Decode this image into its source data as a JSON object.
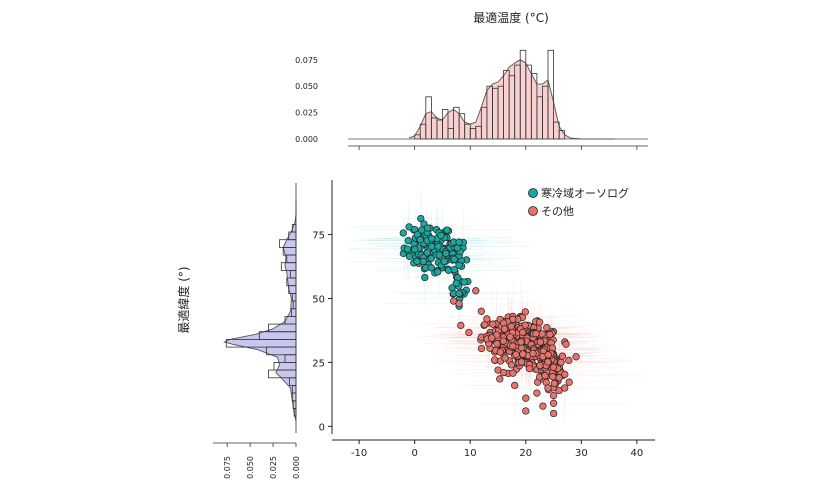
{
  "chart_data": [
    {
      "type": "histogram",
      "panel": "top-marginal",
      "title": "最適温度 (°C)",
      "yticks": [
        "0.000",
        "0.025",
        "0.050",
        "0.075"
      ],
      "bins": [
        {
          "x0": 0,
          "x1": 1,
          "y": 0.004
        },
        {
          "x0": 1,
          "x1": 2,
          "y": 0.014
        },
        {
          "x0": 2,
          "x1": 3,
          "y": 0.04
        },
        {
          "x0": 3,
          "x1": 4,
          "y": 0.02
        },
        {
          "x0": 4,
          "x1": 5,
          "y": 0.018
        },
        {
          "x0": 5,
          "x1": 6,
          "y": 0.028
        },
        {
          "x0": 6,
          "x1": 7,
          "y": 0.01
        },
        {
          "x0": 7,
          "x1": 8,
          "y": 0.03
        },
        {
          "x0": 8,
          "x1": 9,
          "y": 0.024
        },
        {
          "x0": 9,
          "x1": 10,
          "y": 0.014
        },
        {
          "x0": 10,
          "x1": 11,
          "y": 0.01
        },
        {
          "x0": 11,
          "x1": 12,
          "y": 0.012
        },
        {
          "x0": 12,
          "x1": 13,
          "y": 0.03
        },
        {
          "x0": 13,
          "x1": 14,
          "y": 0.05
        },
        {
          "x0": 14,
          "x1": 15,
          "y": 0.048
        },
        {
          "x0": 15,
          "x1": 16,
          "y": 0.05
        },
        {
          "x0": 16,
          "x1": 17,
          "y": 0.065
        },
        {
          "x0": 17,
          "x1": 18,
          "y": 0.06
        },
        {
          "x0": 18,
          "x1": 19,
          "y": 0.07
        },
        {
          "x0": 19,
          "x1": 20,
          "y": 0.084
        },
        {
          "x0": 20,
          "x1": 21,
          "y": 0.07
        },
        {
          "x0": 21,
          "x1": 22,
          "y": 0.062
        },
        {
          "x0": 22,
          "x1": 23,
          "y": 0.04
        },
        {
          "x0": 23,
          "x1": 24,
          "y": 0.05
        },
        {
          "x0": 24,
          "x1": 25,
          "y": 0.084
        },
        {
          "x0": 25,
          "x1": 26,
          "y": 0.016
        },
        {
          "x0": 26,
          "x1": 27,
          "y": 0.008
        }
      ],
      "density": [
        [
          -1,
          0.001
        ],
        [
          0,
          0.003
        ],
        [
          1,
          0.012
        ],
        [
          2,
          0.024
        ],
        [
          3,
          0.026
        ],
        [
          4,
          0.02
        ],
        [
          5,
          0.018
        ],
        [
          6,
          0.025
        ],
        [
          7,
          0.028
        ],
        [
          8,
          0.024
        ],
        [
          9,
          0.016
        ],
        [
          10,
          0.014
        ],
        [
          11,
          0.016
        ],
        [
          12,
          0.03
        ],
        [
          13,
          0.046
        ],
        [
          14,
          0.052
        ],
        [
          15,
          0.054
        ],
        [
          16,
          0.06
        ],
        [
          17,
          0.068
        ],
        [
          18,
          0.072
        ],
        [
          19,
          0.075
        ],
        [
          20,
          0.072
        ],
        [
          21,
          0.062
        ],
        [
          22,
          0.052
        ],
        [
          23,
          0.052
        ],
        [
          24,
          0.056
        ],
        [
          25,
          0.035
        ],
        [
          26,
          0.012
        ],
        [
          27,
          0.004
        ],
        [
          28,
          0.001
        ],
        [
          30,
          0.0
        ],
        [
          36,
          0.0
        ]
      ],
      "xlim": [
        -11,
        42
      ],
      "ylim": [
        0,
        0.09
      ],
      "color": "#f8d0d0"
    },
    {
      "type": "histogram",
      "panel": "left-marginal",
      "ylabel": "最適緯度 (°)",
      "xticks": [
        "0.075",
        "0.050",
        "0.025",
        "0.000"
      ],
      "bins": [
        {
          "y0": 4,
          "y1": 7,
          "x": 0.002
        },
        {
          "y0": 7,
          "y1": 10,
          "x": 0.003
        },
        {
          "y0": 10,
          "y1": 13,
          "x": 0.004
        },
        {
          "y0": 13,
          "y1": 16,
          "x": 0.004
        },
        {
          "y0": 16,
          "y1": 19,
          "x": 0.007
        },
        {
          "y0": 19,
          "y1": 22,
          "x": 0.03
        },
        {
          "y0": 22,
          "y1": 25,
          "x": 0.024
        },
        {
          "y0": 25,
          "y1": 28,
          "x": 0.012
        },
        {
          "y0": 28,
          "y1": 31,
          "x": 0.032
        },
        {
          "y0": 31,
          "y1": 34,
          "x": 0.076
        },
        {
          "y0": 34,
          "y1": 37,
          "x": 0.04
        },
        {
          "y0": 37,
          "y1": 40,
          "x": 0.03
        },
        {
          "y0": 40,
          "y1": 43,
          "x": 0.012
        },
        {
          "y0": 43,
          "y1": 46,
          "x": 0.005
        },
        {
          "y0": 46,
          "y1": 49,
          "x": 0.003
        },
        {
          "y0": 49,
          "y1": 52,
          "x": 0.004
        },
        {
          "y0": 52,
          "y1": 55,
          "x": 0.008
        },
        {
          "y0": 55,
          "y1": 58,
          "x": 0.01
        },
        {
          "y0": 58,
          "y1": 61,
          "x": 0.006
        },
        {
          "y0": 61,
          "y1": 64,
          "x": 0.016
        },
        {
          "y0": 64,
          "y1": 67,
          "x": 0.01
        },
        {
          "y0": 67,
          "y1": 70,
          "x": 0.014
        },
        {
          "y0": 70,
          "y1": 73,
          "x": 0.018
        },
        {
          "y0": 73,
          "y1": 76,
          "x": 0.008
        },
        {
          "y0": 76,
          "y1": 79,
          "x": 0.004
        }
      ],
      "density": [
        [
          2,
          0.0
        ],
        [
          5,
          0.002
        ],
        [
          10,
          0.004
        ],
        [
          15,
          0.006
        ],
        [
          19,
          0.016
        ],
        [
          21,
          0.022
        ],
        [
          24,
          0.018
        ],
        [
          27,
          0.02
        ],
        [
          30,
          0.042
        ],
        [
          32,
          0.068
        ],
        [
          33,
          0.078
        ],
        [
          34,
          0.072
        ],
        [
          36,
          0.044
        ],
        [
          38,
          0.026
        ],
        [
          41,
          0.012
        ],
        [
          45,
          0.006
        ],
        [
          50,
          0.005
        ],
        [
          54,
          0.008
        ],
        [
          57,
          0.009
        ],
        [
          60,
          0.01
        ],
        [
          63,
          0.012
        ],
        [
          66,
          0.011
        ],
        [
          70,
          0.014
        ],
        [
          73,
          0.01
        ],
        [
          77,
          0.004
        ],
        [
          80,
          0.001
        ],
        [
          83,
          0.0
        ],
        [
          88,
          0.0
        ]
      ],
      "ylim": [
        -3,
        94
      ],
      "xlim": [
        0,
        0.085
      ],
      "color": "#c8c8ee"
    },
    {
      "type": "scatter",
      "panel": "main",
      "xlim": [
        -12,
        42
      ],
      "ylim": [
        -3,
        94
      ],
      "xticks": [
        -10,
        0,
        10,
        20,
        30,
        40
      ],
      "yticks": [
        0,
        25,
        50,
        75
      ],
      "series": [
        {
          "name": "寒冷域オーソログ",
          "color": "#1aa7a0",
          "clusters": [
            {
              "cx": 2.5,
              "cy": 70,
              "sx": 2.2,
              "sy": 4.5,
              "n": 90
            },
            {
              "cx": 6.5,
              "cy": 66,
              "sx": 1.5,
              "sy": 4.0,
              "n": 40
            },
            {
              "cx": 8.0,
              "cy": 55,
              "sx": 1.2,
              "sy": 3.0,
              "n": 14
            }
          ],
          "points": [
            [
              -1,
              78
            ],
            [
              0,
              77
            ],
            [
              0.5,
              75
            ],
            [
              1,
              73
            ],
            [
              2,
              62
            ],
            [
              3,
              62
            ],
            [
              7,
              72
            ],
            [
              8,
              72
            ],
            [
              7,
              52
            ],
            [
              8,
              52
            ],
            [
              8,
              47
            ],
            [
              7.5,
              56
            ]
          ]
        },
        {
          "name": "その他",
          "color": "#e8736c",
          "clusters": [
            {
              "cx": 17,
              "cy": 36,
              "sx": 2.5,
              "sy": 3.0,
              "n": 170
            },
            {
              "cx": 21,
              "cy": 30,
              "sx": 2.5,
              "sy": 4.5,
              "n": 170
            },
            {
              "cx": 24,
              "cy": 24,
              "sx": 1.6,
              "sy": 4.0,
              "n": 100
            }
          ],
          "points": [
            [
              7,
              49
            ],
            [
              8,
              48
            ],
            [
              11,
              53
            ],
            [
              12,
              45
            ],
            [
              13,
              42
            ],
            [
              15,
              22
            ],
            [
              16,
              21
            ],
            [
              18,
              16
            ],
            [
              20,
              11
            ],
            [
              22,
              13
            ],
            [
              24,
              15
            ],
            [
              25,
              12
            ],
            [
              26,
              14
            ],
            [
              25,
              9
            ],
            [
              20,
              6
            ],
            [
              25,
              5
            ],
            [
              27,
              15
            ],
            [
              26,
              19
            ]
          ]
        }
      ],
      "legend_placement": "top-right"
    }
  ]
}
